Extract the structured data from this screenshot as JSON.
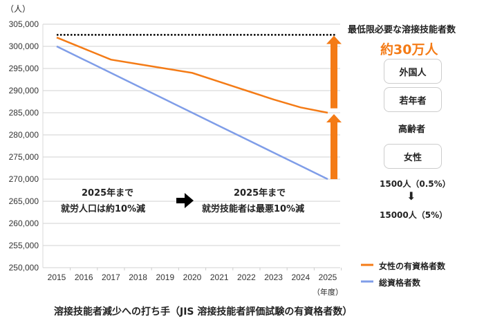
{
  "chart_data": {
    "type": "line",
    "title": "溶接技能者減少への打ち手（JIS 溶接技能者評価試験の有資格者数）",
    "ylabel": "（人）",
    "xlabel": "（年度）",
    "x": [
      2015,
      2016,
      2017,
      2018,
      2019,
      2020,
      2021,
      2022,
      2023,
      2024,
      2025
    ],
    "ylim": [
      250000,
      305000
    ],
    "yticks": [
      "250,000",
      "255,000",
      "260,000",
      "265,000",
      "270,000",
      "275,000",
      "280,000",
      "285,000",
      "290,000",
      "295,000",
      "300,000",
      "305,000"
    ],
    "grid": true,
    "legend_position": "bottom-right",
    "series": [
      {
        "name": "女性の有資格者数",
        "color": "#f47b16",
        "values": [
          302000,
          299500,
          297000,
          296000,
          295000,
          294000,
          292000,
          290000,
          288000,
          286200,
          285000
        ]
      },
      {
        "name": "総資格者数",
        "color": "#7f9de8",
        "values": [
          300000,
          297000,
          294000,
          291000,
          288000,
          285000,
          282000,
          279000,
          276000,
          273000,
          270000
        ]
      }
    ],
    "reference_line": {
      "value": 302600,
      "style": "dotted",
      "color": "#000000"
    },
    "annotations": {
      "left_line1": "2025年まで",
      "left_line2": "就労人口は約10%減",
      "right_line1": "2025年まで",
      "right_line2": "就労技能者は最悪10%減"
    }
  },
  "side_panel": {
    "heading": "最低限必要な溶接技能者数",
    "target": "約30万人",
    "target_color": "#f47b16",
    "items": [
      "外国人",
      "若年者",
      "高齢者",
      "女性"
    ],
    "women_from": "1500人（0.5%）",
    "women_to": "15000人（5%）"
  }
}
